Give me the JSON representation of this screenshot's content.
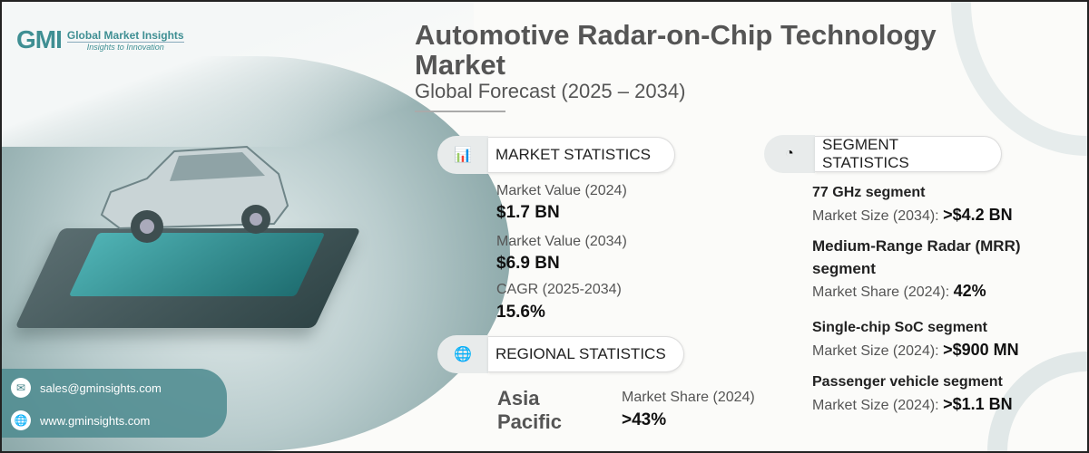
{
  "brand": {
    "logo_text": "GMI",
    "name": "Global Market Insights",
    "tagline": "Insights to Innovation"
  },
  "header": {
    "title_line1": "Automotive Radar-on-Chip Technology",
    "title_line2": "Market",
    "subtitle": "Global Forecast (2025 – 2034)"
  },
  "market_statistics": {
    "heading": "MARKET STATISTICS",
    "items": [
      {
        "label": "Market Value (2024)",
        "value": "$1.7 BN"
      },
      {
        "label": "Market Value (2034)",
        "value": "$6.9 BN"
      },
      {
        "label": "CAGR (2025-2034)",
        "value": "15.6%"
      }
    ]
  },
  "regional_statistics": {
    "heading": "REGIONAL STATISTICS",
    "region_line1": "Asia",
    "region_line2": "Pacific",
    "label": "Market Share (2024)",
    "value": ">43%"
  },
  "segment_statistics": {
    "heading": "SEGMENT STATISTICS",
    "items": [
      {
        "name": "77 GHz segment",
        "label": "Market Size (2034):",
        "value": ">$4.2 BN"
      },
      {
        "name": "Medium-Range Radar (MRR)",
        "name2": "segment",
        "label": "Market Share (2024):",
        "value": "42%"
      },
      {
        "name": "Single-chip SoC segment",
        "label": "Market Size (2024):",
        "value": ">$900 MN"
      },
      {
        "name": "Passenger vehicle segment",
        "label": "Market Size (2024):",
        "value": ">$1.1 BN"
      }
    ]
  },
  "contact": {
    "email": "sales@gminsights.com",
    "website": "www.gminsights.com"
  },
  "colors": {
    "accent": "#3f8f93",
    "text_dark": "#111111",
    "text_muted": "#555555"
  }
}
